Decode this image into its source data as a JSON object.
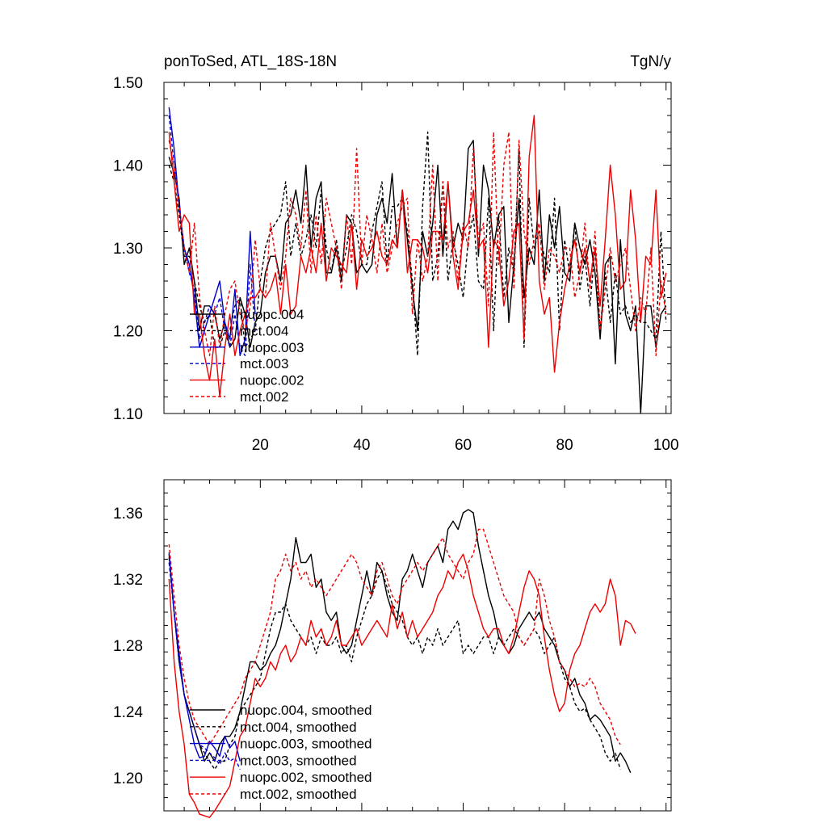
{
  "chart_data": [
    {
      "type": "line",
      "title_left": "ponToSed, ATL_18S-18N",
      "title_right": "TgN/y",
      "xlim": [
        1,
        101
      ],
      "ylim": [
        1.1,
        1.5
      ],
      "x_ticks": [
        20,
        40,
        60,
        80,
        100
      ],
      "x_tick_labels": [
        "20",
        "40",
        "60",
        "80",
        "100"
      ],
      "y_ticks": [
        1.1,
        1.2,
        1.3,
        1.4,
        1.5
      ],
      "y_tick_labels": [
        "1.10",
        "1.20",
        "1.30",
        "1.40",
        "1.50"
      ],
      "legend_position": "bottom-left",
      "series": [
        {
          "name": "nuopc.004",
          "color": "#000000",
          "dash": "solid",
          "x_start": 2,
          "values": [
            1.41,
            1.39,
            1.36,
            1.28,
            1.3,
            1.26,
            1.2,
            1.23,
            1.23,
            1.22,
            1.19,
            1.21,
            1.18,
            1.19,
            1.24,
            1.22,
            1.18,
            1.21,
            1.22,
            1.27,
            1.29,
            1.29,
            1.26,
            1.33,
            1.34,
            1.37,
            1.33,
            1.4,
            1.3,
            1.36,
            1.38,
            1.27,
            1.27,
            1.3,
            1.26,
            1.34,
            1.33,
            1.27,
            1.28,
            1.27,
            1.28,
            1.34,
            1.36,
            1.33,
            1.39,
            1.3,
            1.37,
            1.31,
            1.25,
            1.2,
            1.32,
            1.29,
            1.33,
            1.4,
            1.29,
            1.38,
            1.3,
            1.33,
            1.31,
            1.42,
            1.43,
            1.29,
            1.4,
            1.37,
            1.3,
            1.34,
            1.35,
            1.21,
            1.28,
            1.36,
            1.24,
            1.3,
            1.28,
            1.37,
            1.26,
            1.34,
            1.3,
            1.35,
            1.27,
            1.26,
            1.33,
            1.3,
            1.28,
            1.31,
            1.27,
            1.19,
            1.28,
            1.29,
            1.16,
            1.31,
            1.22,
            1.2,
            1.23,
            1.1,
            1.23,
            1.23,
            1.18,
            1.22,
            1.23
          ]
        },
        {
          "name": "mct.004",
          "color": "#000000",
          "dash": "dashed",
          "x_start": 2,
          "values": [
            1.4,
            1.38,
            1.34,
            1.29,
            1.29,
            1.26,
            1.23,
            1.21,
            1.22,
            1.18,
            1.18,
            1.2,
            1.2,
            1.23,
            1.24,
            1.18,
            1.19,
            1.2,
            1.26,
            1.3,
            1.32,
            1.33,
            1.34,
            1.38,
            1.29,
            1.33,
            1.29,
            1.31,
            1.34,
            1.3,
            1.37,
            1.3,
            1.27,
            1.31,
            1.27,
            1.3,
            1.34,
            1.32,
            1.28,
            1.28,
            1.32,
            1.35,
            1.38,
            1.28,
            1.35,
            1.35,
            1.36,
            1.32,
            1.26,
            1.17,
            1.35,
            1.44,
            1.26,
            1.29,
            1.38,
            1.26,
            1.31,
            1.28,
            1.24,
            1.31,
            1.34,
            1.26,
            1.25,
            1.36,
            1.2,
            1.34,
            1.24,
            1.3,
            1.27,
            1.42,
            1.18,
            1.36,
            1.3,
            1.32,
            1.29,
            1.27,
            1.36,
            1.2,
            1.31,
            1.27,
            1.33,
            1.25,
            1.29,
            1.23,
            1.3,
            1.2,
            1.27,
            1.21,
            1.27,
            1.22,
            1.23,
            1.21,
            1.22,
            1.21,
            1.21,
            1.2,
            1.19,
            1.32,
            1.21
          ]
        },
        {
          "name": "nuopc.003",
          "color": "#0000cc",
          "dash": "solid",
          "x_start": 2,
          "values": [
            1.47,
            1.42,
            1.35,
            1.3,
            1.28,
            1.24,
            1.18,
            1.2,
            1.22,
            1.24,
            1.26,
            1.21,
            1.19,
            1.25,
            1.17,
            1.19,
            1.32,
            1.22
          ]
        },
        {
          "name": "mct.003",
          "color": "#0000cc",
          "dash": "dashed",
          "x_start": 2,
          "values": [
            1.46,
            1.4,
            1.35,
            1.3,
            1.27,
            1.25,
            1.19,
            1.21,
            1.23,
            1.22,
            1.24,
            1.2,
            1.18,
            1.22,
            1.18,
            1.17,
            1.28,
            1.2
          ]
        },
        {
          "name": "nuopc.002",
          "color": "#ee0000",
          "dash": "solid",
          "x_start": 2,
          "values": [
            1.44,
            1.38,
            1.32,
            1.34,
            1.33,
            1.22,
            1.22,
            1.17,
            1.14,
            1.19,
            1.12,
            1.18,
            1.22,
            1.17,
            1.2,
            1.22,
            1.24,
            1.24,
            1.25,
            1.24,
            1.25,
            1.27,
            1.22,
            1.28,
            1.22,
            1.23,
            1.29,
            1.27,
            1.3,
            1.27,
            1.33,
            1.26,
            1.3,
            1.29,
            1.28,
            1.27,
            1.33,
            1.25,
            1.31,
            1.29,
            1.3,
            1.32,
            1.29,
            1.28,
            1.31,
            1.3,
            1.37,
            1.27,
            1.31,
            1.31,
            1.3,
            1.27,
            1.32,
            1.32,
            1.31,
            1.38,
            1.29,
            1.25,
            1.32,
            1.33,
            1.37,
            1.3,
            1.31,
            1.18,
            1.31,
            1.3,
            1.23,
            1.26,
            1.32,
            1.33,
            1.19,
            1.41,
            1.46,
            1.26,
            1.22,
            1.24,
            1.15,
            1.21,
            1.25,
            1.28,
            1.31,
            1.27,
            1.3,
            1.26,
            1.3,
            1.23,
            1.31,
            1.4,
            1.34,
            1.25,
            1.26,
            1.37,
            1.31,
            1.21,
            1.29,
            1.28,
            1.37,
            1.24,
            1.27
          ]
        },
        {
          "name": "mct.002",
          "color": "#ee0000",
          "dash": "dashed",
          "x_start": 2,
          "values": [
            1.43,
            1.4,
            1.35,
            1.3,
            1.27,
            1.33,
            1.24,
            1.2,
            1.17,
            1.23,
            1.18,
            1.22,
            1.25,
            1.26,
            1.22,
            1.2,
            1.23,
            1.31,
            1.25,
            1.24,
            1.33,
            1.29,
            1.25,
            1.29,
            1.36,
            1.34,
            1.3,
            1.37,
            1.27,
            1.34,
            1.28,
            1.36,
            1.33,
            1.3,
            1.25,
            1.34,
            1.28,
            1.42,
            1.28,
            1.34,
            1.31,
            1.27,
            1.33,
            1.27,
            1.3,
            1.33,
            1.35,
            1.36,
            1.22,
            1.31,
            1.26,
            1.29,
            1.4,
            1.26,
            1.38,
            1.3,
            1.32,
            1.26,
            1.33,
            1.3,
            1.42,
            1.31,
            1.33,
            1.23,
            1.44,
            1.28,
            1.4,
            1.44,
            1.25,
            1.43,
            1.32,
            1.28,
            1.31,
            1.33,
            1.25,
            1.3,
            1.29,
            1.27,
            1.3,
            1.3,
            1.24,
            1.27,
            1.33,
            1.25,
            1.32,
            1.2,
            1.25,
            1.3,
            1.26,
            1.28,
            1.3,
            1.25,
            1.2,
            1.24,
            1.22,
            1.3,
            1.17,
            1.26,
            1.22
          ]
        }
      ]
    },
    {
      "type": "line",
      "xlim": [
        1,
        101
      ],
      "ylim": [
        1.18,
        1.38
      ],
      "y_ticks": [
        1.2,
        1.24,
        1.28,
        1.32,
        1.36
      ],
      "y_tick_labels": [
        "1.20",
        "1.24",
        "1.28",
        "1.32",
        "1.36"
      ],
      "legend_position": "bottom-left",
      "series": [
        {
          "name": "nuopc.004, smoothed",
          "color": "#000000",
          "dash": "solid",
          "x_start": 2,
          "values": [
            1.335,
            1.3,
            1.27,
            1.25,
            1.24,
            1.23,
            1.22,
            1.21,
            1.215,
            1.21,
            1.22,
            1.225,
            1.225,
            1.23,
            1.24,
            1.255,
            1.27,
            1.27,
            1.265,
            1.268,
            1.275,
            1.28,
            1.29,
            1.305,
            1.32,
            1.345,
            1.33,
            1.33,
            1.335,
            1.315,
            1.32,
            1.3,
            1.295,
            1.3,
            1.28,
            1.275,
            1.28,
            1.295,
            1.31,
            1.325,
            1.31,
            1.33,
            1.325,
            1.31,
            1.3,
            1.295,
            1.32,
            1.325,
            1.335,
            1.325,
            1.315,
            1.33,
            1.335,
            1.34,
            1.33,
            1.35,
            1.355,
            1.35,
            1.36,
            1.362,
            1.36,
            1.34,
            1.325,
            1.31,
            1.3,
            1.285,
            1.28,
            1.275,
            1.28,
            1.29,
            1.295,
            1.3,
            1.295,
            1.3,
            1.29,
            1.285,
            1.28,
            1.27,
            1.265,
            1.255,
            1.26,
            1.25,
            1.245,
            1.235,
            1.238,
            1.235,
            1.23,
            1.225,
            1.21,
            1.215,
            1.21,
            1.203
          ]
        },
        {
          "name": "mct.004, smoothed",
          "color": "#000000",
          "dash": "dashed",
          "x_start": 2,
          "values": [
            1.333,
            1.3,
            1.27,
            1.25,
            1.24,
            1.23,
            1.22,
            1.215,
            1.21,
            1.205,
            1.21,
            1.21,
            1.22,
            1.225,
            1.24,
            1.245,
            1.25,
            1.255,
            1.26,
            1.275,
            1.29,
            1.3,
            1.3,
            1.305,
            1.295,
            1.29,
            1.285,
            1.28,
            1.285,
            1.275,
            1.285,
            1.28,
            1.28,
            1.285,
            1.275,
            1.28,
            1.27,
            1.285,
            1.295,
            1.305,
            1.31,
            1.32,
            1.325,
            1.315,
            1.305,
            1.3,
            1.295,
            1.285,
            1.28,
            1.285,
            1.275,
            1.285,
            1.28,
            1.29,
            1.28,
            1.285,
            1.29,
            1.295,
            1.275,
            1.28,
            1.275,
            1.28,
            1.285,
            1.285,
            1.275,
            1.285,
            1.28,
            1.285,
            1.29,
            1.285,
            1.28,
            1.285,
            1.29,
            1.285,
            1.275,
            1.28,
            1.285,
            1.27,
            1.26,
            1.255,
            1.245,
            1.24,
            1.242,
            1.235,
            1.23,
            1.225,
            1.215,
            1.21,
            1.215,
            1.205
          ]
        },
        {
          "name": "nuopc.003, smoothed",
          "color": "#0000cc",
          "dash": "solid",
          "x_start": 2,
          "values": [
            1.336,
            1.3,
            1.275,
            1.25,
            1.235,
            1.22,
            1.212,
            1.213,
            1.222,
            1.218,
            1.213,
            1.225,
            1.218,
            1.222,
            1.21
          ]
        },
        {
          "name": "mct.003, smoothed",
          "color": "#0000cc",
          "dash": "dashed",
          "x_start": 2,
          "values": [
            1.33,
            1.3,
            1.27,
            1.25,
            1.24,
            1.23,
            1.22,
            1.218,
            1.215,
            1.212,
            1.208,
            1.215,
            1.21,
            1.212,
            1.205
          ]
        },
        {
          "name": "nuopc.002, smoothed",
          "color": "#ee0000",
          "dash": "solid",
          "x_start": 2,
          "values": [
            1.32,
            1.27,
            1.24,
            1.22,
            1.19,
            1.185,
            1.178,
            1.177,
            1.176,
            1.18,
            1.185,
            1.19,
            1.195,
            1.21,
            1.225,
            1.23,
            1.245,
            1.26,
            1.255,
            1.26,
            1.27,
            1.265,
            1.275,
            1.28,
            1.27,
            1.275,
            1.285,
            1.28,
            1.295,
            1.285,
            1.29,
            1.28,
            1.285,
            1.295,
            1.28,
            1.28,
            1.285,
            1.29,
            1.28,
            1.285,
            1.29,
            1.295,
            1.29,
            1.285,
            1.305,
            1.29,
            1.3,
            1.285,
            1.295,
            1.285,
            1.29,
            1.295,
            1.3,
            1.31,
            1.315,
            1.325,
            1.32,
            1.33,
            1.335,
            1.325,
            1.31,
            1.3,
            1.29,
            1.285,
            1.29,
            1.29,
            1.28,
            1.275,
            1.285,
            1.3,
            1.315,
            1.325,
            1.32,
            1.31,
            1.285,
            1.265,
            1.25,
            1.24,
            1.245,
            1.265,
            1.275,
            1.28,
            1.29,
            1.3,
            1.305,
            1.3,
            1.305,
            1.32,
            1.31,
            1.28,
            1.295,
            1.293,
            1.287
          ]
        },
        {
          "name": "mct.002, smoothed",
          "color": "#ee0000",
          "dash": "dashed",
          "x_start": 2,
          "values": [
            1.341,
            1.31,
            1.28,
            1.26,
            1.245,
            1.235,
            1.23,
            1.225,
            1.22,
            1.225,
            1.23,
            1.235,
            1.24,
            1.245,
            1.25,
            1.26,
            1.265,
            1.27,
            1.28,
            1.29,
            1.3,
            1.32,
            1.325,
            1.335,
            1.325,
            1.33,
            1.32,
            1.325,
            1.315,
            1.32,
            1.315,
            1.31,
            1.315,
            1.32,
            1.325,
            1.33,
            1.335,
            1.33,
            1.32,
            1.315,
            1.31,
            1.325,
            1.33,
            1.32,
            1.31,
            1.305,
            1.315,
            1.32,
            1.325,
            1.33,
            1.325,
            1.33,
            1.335,
            1.34,
            1.345,
            1.335,
            1.33,
            1.325,
            1.32,
            1.33,
            1.335,
            1.35,
            1.35,
            1.34,
            1.33,
            1.32,
            1.31,
            1.305,
            1.3,
            1.285,
            1.28,
            1.285,
            1.29,
            1.32,
            1.31,
            1.295,
            1.285,
            1.27,
            1.265,
            1.26,
            1.255,
            1.257,
            1.255,
            1.26,
            1.255,
            1.245,
            1.24,
            1.235,
            1.225,
            1.22
          ]
        }
      ]
    }
  ]
}
